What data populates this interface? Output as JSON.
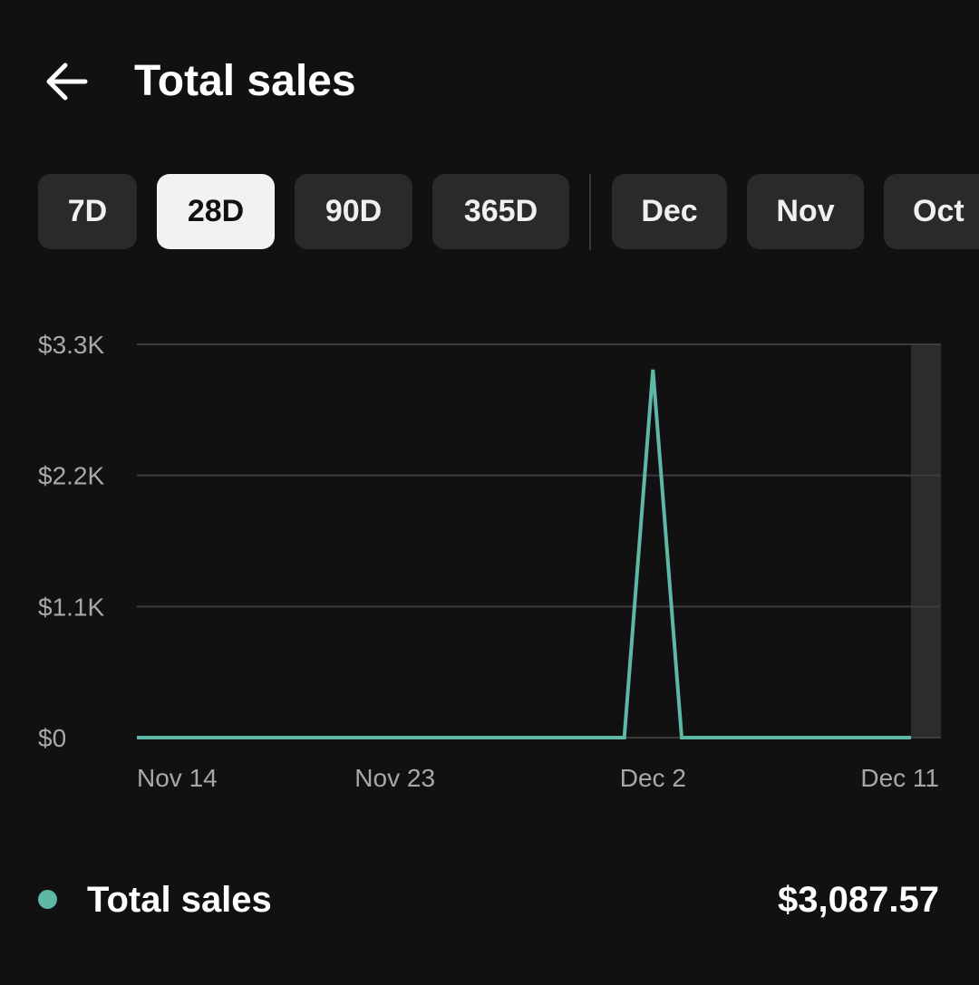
{
  "header": {
    "back_icon": "arrow-left-icon",
    "title": "Total sales"
  },
  "range_chips": [
    {
      "label": "7D",
      "selected": false
    },
    {
      "label": "28D",
      "selected": true
    },
    {
      "label": "90D",
      "selected": false
    },
    {
      "label": "365D",
      "selected": false
    }
  ],
  "month_chips": [
    {
      "label": "Dec",
      "selected": false
    },
    {
      "label": "Nov",
      "selected": false
    },
    {
      "label": "Oct",
      "selected": false
    }
  ],
  "colors": {
    "background": "#111111",
    "chip": "#2a2a2a",
    "chip_selected": "#f2f2f2",
    "series": "#5fb8a6",
    "grid": "#3c3c3c",
    "axis_text": "#a8a8a8"
  },
  "chart_data": {
    "type": "line",
    "title": "",
    "xlabel": "",
    "ylabel": "",
    "ylim": [
      0,
      3300
    ],
    "y_ticks": [
      {
        "value": 0,
        "label": "$0"
      },
      {
        "value": 1100,
        "label": "$1.1K"
      },
      {
        "value": 2200,
        "label": "$2.2K"
      },
      {
        "value": 3300,
        "label": "$3.3K"
      }
    ],
    "x_tick_labels": [
      "Nov 14",
      "Nov 23",
      "Dec 2",
      "Dec 11"
    ],
    "x": [
      "Nov 14",
      "Nov 15",
      "Nov 16",
      "Nov 17",
      "Nov 18",
      "Nov 19",
      "Nov 20",
      "Nov 21",
      "Nov 22",
      "Nov 23",
      "Nov 24",
      "Nov 25",
      "Nov 26",
      "Nov 27",
      "Nov 28",
      "Nov 29",
      "Nov 30",
      "Dec 1",
      "Dec 2",
      "Dec 3",
      "Dec 4",
      "Dec 5",
      "Dec 6",
      "Dec 7",
      "Dec 8",
      "Dec 9",
      "Dec 10",
      "Dec 11"
    ],
    "series": [
      {
        "values": [
          0,
          0,
          0,
          0,
          0,
          0,
          0,
          0,
          0,
          0,
          0,
          0,
          0,
          0,
          0,
          0,
          0,
          0,
          3087.57,
          0,
          0,
          0,
          0,
          0,
          0,
          0,
          0,
          0
        ]
      }
    ],
    "grid": true,
    "highlight_last_point": true
  },
  "legend": {
    "label": "Total sales",
    "value": "$3,087.57"
  }
}
